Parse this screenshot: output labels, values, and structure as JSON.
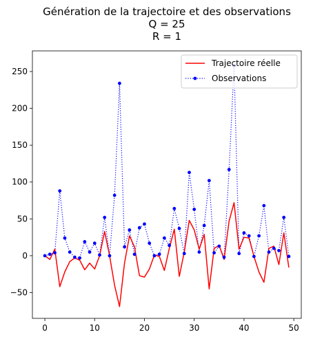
{
  "chart_data": {
    "type": "line",
    "title_lines": [
      "Génération de la trajectoire et des observations",
      "Q = 25",
      "R = 1"
    ],
    "xlabel": "",
    "ylabel": "",
    "xlim": [
      -2.5,
      51.5
    ],
    "ylim": [
      -85,
      278
    ],
    "xticks": [
      0,
      10,
      20,
      30,
      40,
      50
    ],
    "yticks": [
      -50,
      0,
      50,
      100,
      150,
      200,
      250
    ],
    "grid": false,
    "legend_position": "top-right",
    "x": [
      0,
      1,
      2,
      3,
      4,
      5,
      6,
      7,
      8,
      9,
      10,
      11,
      12,
      13,
      14,
      15,
      16,
      17,
      18,
      19,
      20,
      21,
      22,
      23,
      24,
      25,
      26,
      27,
      28,
      29,
      30,
      31,
      32,
      33,
      34,
      35,
      36,
      37,
      38,
      39,
      40,
      41,
      42,
      43,
      44,
      45,
      46,
      47,
      48,
      49
    ],
    "series": [
      {
        "name": "Trajectoire réelle",
        "style": "solid-line",
        "color": "#ff0000",
        "values": [
          0,
          -5,
          9,
          -42,
          -22,
          -8,
          -3,
          -6,
          -19,
          -10,
          -18,
          0,
          33,
          0,
          -40,
          -69,
          -10,
          27,
          12,
          -27,
          -29,
          -18,
          1,
          -1,
          -20,
          10,
          36,
          -28,
          5,
          48,
          35,
          9,
          29,
          -45,
          10,
          14,
          -5,
          47,
          72,
          9,
          25,
          24,
          -1,
          -22,
          -36,
          10,
          13,
          -12,
          31,
          -16
        ]
      },
      {
        "name": "Observations",
        "style": "dotted-markers",
        "color": "#0000ff",
        "values": [
          0,
          2,
          4,
          88,
          24,
          5,
          -2,
          -3,
          19,
          5,
          17,
          1,
          52,
          0,
          82,
          234,
          12,
          35,
          2,
          38,
          43,
          17,
          0,
          2,
          24,
          14,
          64,
          37,
          3,
          113,
          63,
          5,
          41,
          102,
          4,
          13,
          -2,
          117,
          258,
          3,
          31,
          27,
          -1,
          27,
          68,
          5,
          10,
          7,
          52,
          -1
        ]
      }
    ]
  }
}
